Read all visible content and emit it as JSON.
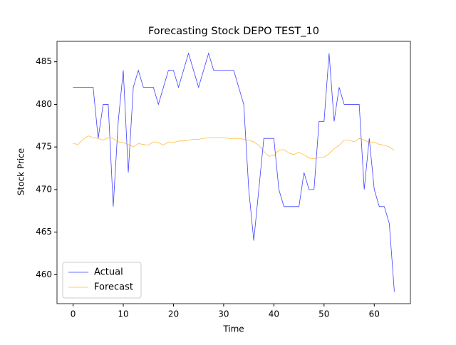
{
  "chart_data": {
    "type": "line",
    "title": "Forecasting Stock DEPO TEST_10",
    "x_label": "Time",
    "y_label": "Stock Price",
    "x": [
      0,
      1,
      2,
      3,
      4,
      5,
      6,
      7,
      8,
      9,
      10,
      11,
      12,
      13,
      14,
      15,
      16,
      17,
      18,
      19,
      20,
      21,
      22,
      23,
      24,
      25,
      26,
      27,
      28,
      29,
      30,
      31,
      32,
      33,
      34,
      35,
      36,
      37,
      38,
      39,
      40,
      41,
      42,
      43,
      44,
      45,
      46,
      47,
      48,
      49,
      50,
      51,
      52,
      53,
      54,
      55,
      56,
      57,
      58,
      59,
      60,
      61,
      62,
      63,
      64
    ],
    "series": [
      {
        "name": "Actual",
        "color": "#0000ff",
        "values": [
          482,
          482,
          482,
          482,
          482,
          476,
          480,
          480,
          468,
          478,
          484,
          472,
          482,
          484,
          482,
          482,
          482,
          480,
          482,
          484,
          484,
          482,
          484,
          486,
          484,
          482,
          484,
          486,
          484,
          484,
          484,
          484,
          484,
          482,
          480,
          470,
          464,
          470,
          476,
          476,
          476,
          470,
          468,
          468,
          468,
          468,
          472,
          470,
          470,
          478,
          478,
          486,
          478,
          482,
          480,
          480,
          480,
          480,
          470,
          476,
          470,
          468,
          468,
          466,
          458
        ]
      },
      {
        "name": "Forecast",
        "color": "#ffa500",
        "values": [
          475.4,
          475.3,
          475.9,
          476.3,
          476.1,
          476.0,
          475.8,
          476.1,
          476.0,
          475.6,
          475.5,
          475.3,
          475.0,
          475.4,
          475.3,
          475.2,
          475.6,
          475.5,
          475.2,
          475.6,
          475.5,
          475.7,
          475.7,
          475.8,
          475.9,
          475.9,
          476.0,
          476.1,
          476.1,
          476.1,
          476.1,
          476.0,
          476.0,
          476.0,
          475.9,
          475.8,
          475.6,
          475.2,
          474.5,
          473.9,
          474.0,
          474.6,
          474.7,
          474.3,
          474.1,
          474.4,
          474.1,
          473.7,
          473.6,
          473.8,
          473.8,
          474.2,
          474.8,
          475.2,
          475.8,
          475.8,
          475.6,
          476.0,
          475.8,
          475.5,
          475.6,
          475.3,
          475.2,
          475.0,
          474.6
        ]
      }
    ],
    "xlim": [
      -3.2,
      67.2
    ],
    "ylim": [
      456.6,
      487.4
    ],
    "xticks": [
      0,
      10,
      20,
      30,
      40,
      50,
      60
    ],
    "yticks": [
      460,
      465,
      470,
      475,
      480,
      485
    ],
    "legend": "lower left"
  }
}
